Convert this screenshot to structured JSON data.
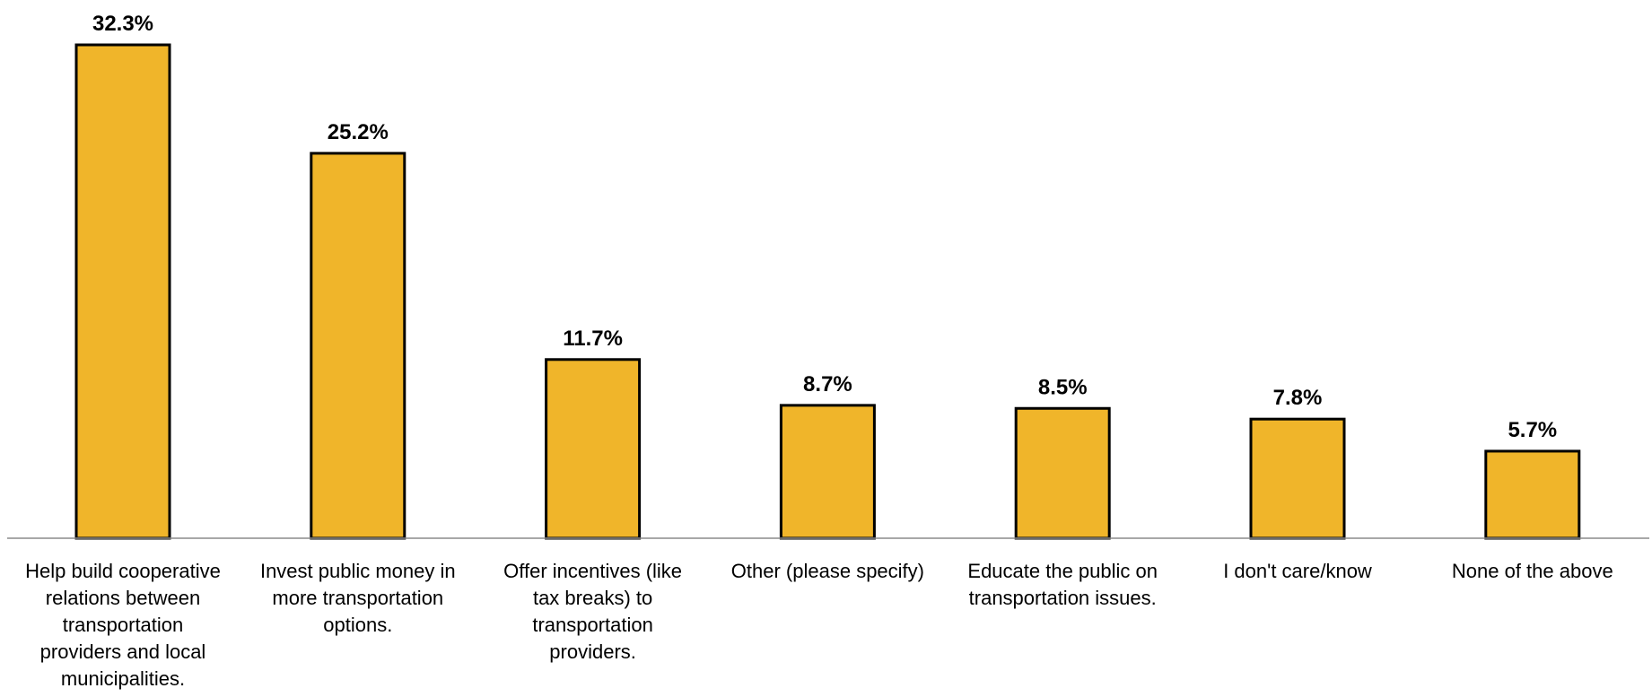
{
  "chart_data": {
    "type": "bar",
    "title": "",
    "xlabel": "",
    "ylabel": "",
    "ylim": [
      0,
      32.3
    ],
    "grid": false,
    "categories": [
      "Help build cooperative relations between transportation providers and local municipalities.",
      "Invest public money in more transportation options.",
      "Offer incentives (like tax breaks) to transportation providers.",
      "Other (please specify)",
      "Educate the public on transportation issues.",
      "I don't care/know",
      "None of the above"
    ],
    "category_lines": [
      [
        "Help build cooperative",
        "relations between",
        "transportation",
        "providers and local",
        "municipalities."
      ],
      [
        "Invest public money in",
        "more transportation",
        "options."
      ],
      [
        "Offer incentives (like",
        "tax breaks) to",
        "transportation",
        "providers."
      ],
      [
        "Other (please specify)"
      ],
      [
        "Educate the public on",
        "transportation issues."
      ],
      [
        "I don't care/know"
      ],
      [
        "None of the above"
      ]
    ],
    "values": [
      32.3,
      25.2,
      11.7,
      8.7,
      8.5,
      7.8,
      5.7
    ],
    "value_labels": [
      "32.3%",
      "25.2%",
      "11.7%",
      "8.7%",
      "8.5%",
      "7.8%",
      "5.7%"
    ],
    "bar_color": "#F0B52A",
    "bar_outline_color": "#000000"
  }
}
